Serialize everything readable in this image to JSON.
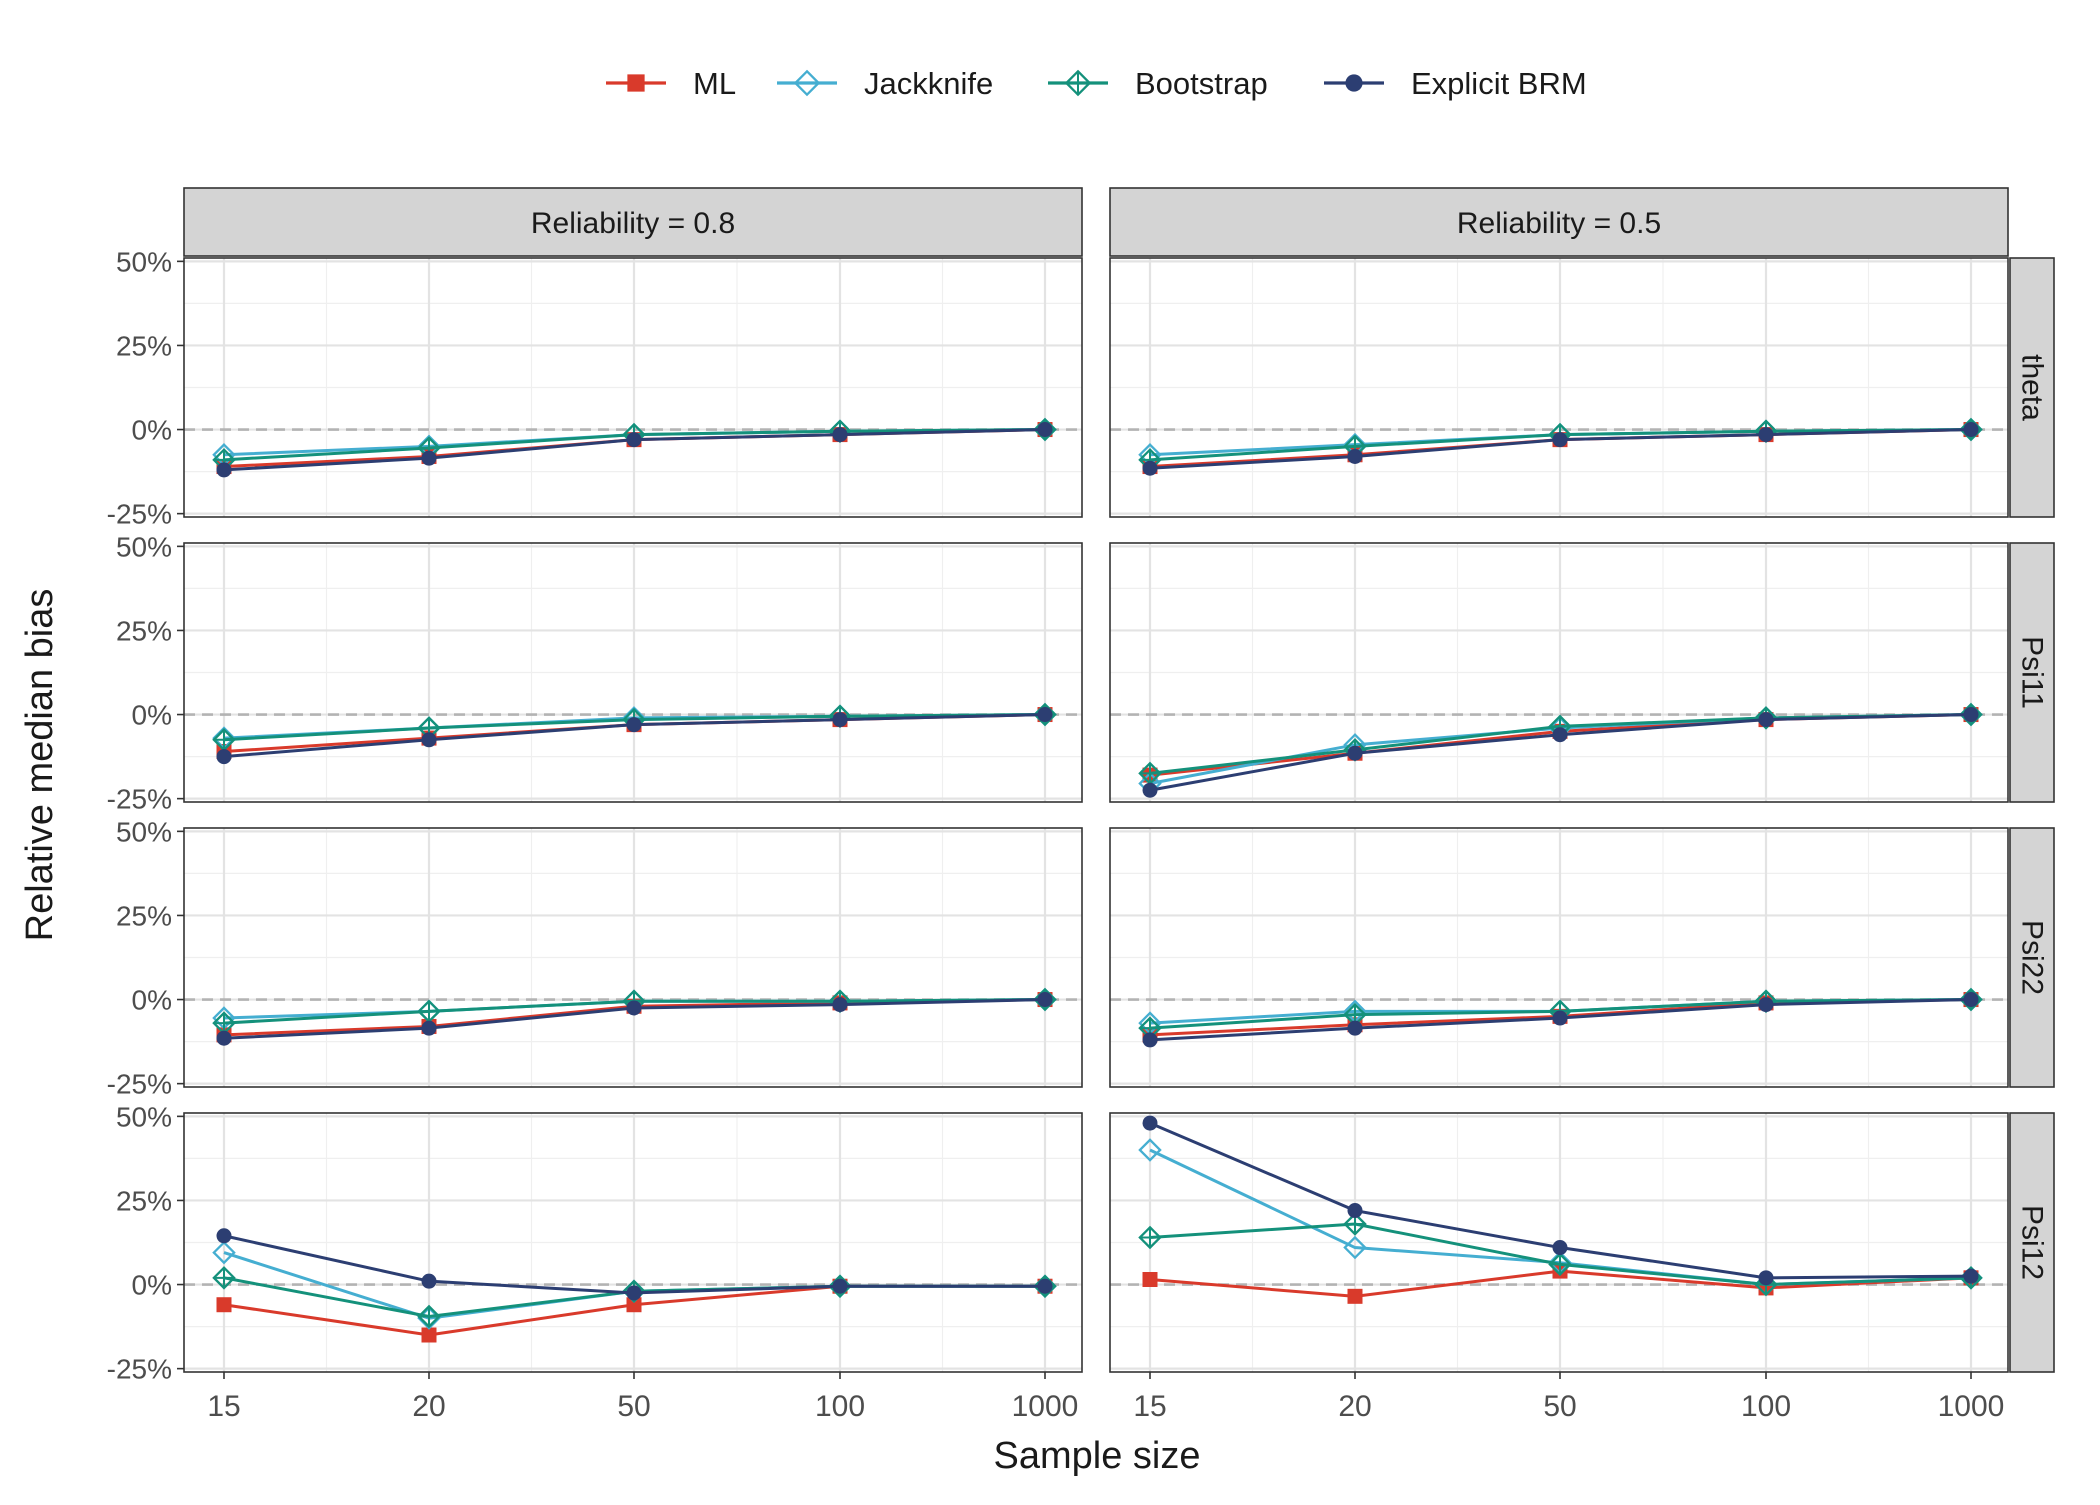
{
  "chart_data": {
    "type": "line",
    "xlabel": "Sample size",
    "ylabel": "Relative median bias",
    "x_categories": [
      "15",
      "20",
      "50",
      "100",
      "1000"
    ],
    "y_ticks": [
      -25,
      0,
      25,
      50
    ],
    "y_tick_labels": [
      "-25%",
      "0%",
      "25%",
      "50%"
    ],
    "ylim": [
      -26,
      51
    ],
    "grid": true,
    "reference_line": 0,
    "legend_position": "top",
    "columns": [
      "Reliability = 0.8",
      "Reliability = 0.5"
    ],
    "rows": [
      "theta",
      "Psi11",
      "Psi22",
      "Psi12"
    ],
    "series_styles": [
      {
        "name": "ML",
        "color": "#d93a2b",
        "marker": "square"
      },
      {
        "name": "Jackknife",
        "color": "#45aed1",
        "marker": "diamond-open"
      },
      {
        "name": "Bootstrap",
        "color": "#14917b",
        "marker": "diamond-cross"
      },
      {
        "name": "Explicit BRM",
        "color": "#2c3e72",
        "marker": "circle"
      }
    ],
    "panels": [
      {
        "row": "theta",
        "column": "Reliability = 0.8",
        "series": [
          {
            "name": "ML",
            "values": [
              -11,
              -8,
              -3,
              -1.5,
              0
            ]
          },
          {
            "name": "Jackknife",
            "values": [
              -7.5,
              -5,
              -1.5,
              -0.5,
              0
            ]
          },
          {
            "name": "Bootstrap",
            "values": [
              -9,
              -5.5,
              -1.5,
              -0.5,
              0
            ]
          },
          {
            "name": "Explicit BRM",
            "values": [
              -12,
              -8.5,
              -3,
              -1.5,
              0
            ]
          }
        ]
      },
      {
        "row": "theta",
        "column": "Reliability = 0.5",
        "series": [
          {
            "name": "ML",
            "values": [
              -11,
              -7.5,
              -3,
              -1.5,
              0
            ]
          },
          {
            "name": "Jackknife",
            "values": [
              -7.5,
              -4.5,
              -1.5,
              -0.5,
              0
            ]
          },
          {
            "name": "Bootstrap",
            "values": [
              -9,
              -5,
              -1.5,
              -0.5,
              0
            ]
          },
          {
            "name": "Explicit BRM",
            "values": [
              -11.5,
              -8,
              -3,
              -1.5,
              0
            ]
          }
        ]
      },
      {
        "row": "Psi11",
        "column": "Reliability = 0.8",
        "series": [
          {
            "name": "ML",
            "values": [
              -11,
              -7,
              -3,
              -1.5,
              0
            ]
          },
          {
            "name": "Jackknife",
            "values": [
              -7,
              -4,
              -1,
              -0.5,
              0
            ]
          },
          {
            "name": "Bootstrap",
            "values": [
              -7.5,
              -4,
              -1.5,
              -0.5,
              0
            ]
          },
          {
            "name": "Explicit BRM",
            "values": [
              -12.5,
              -7.5,
              -3,
              -1.5,
              0
            ]
          }
        ]
      },
      {
        "row": "Psi11",
        "column": "Reliability = 0.5",
        "series": [
          {
            "name": "ML",
            "values": [
              -18,
              -11.5,
              -5,
              -1.5,
              0
            ]
          },
          {
            "name": "Jackknife",
            "values": [
              -20.5,
              -9,
              -4,
              -1,
              0
            ]
          },
          {
            "name": "Bootstrap",
            "values": [
              -17.5,
              -10.5,
              -3.5,
              -1,
              0
            ]
          },
          {
            "name": "Explicit BRM",
            "values": [
              -22.5,
              -11.5,
              -6,
              -1.5,
              0
            ]
          }
        ]
      },
      {
        "row": "Psi22",
        "column": "Reliability = 0.8",
        "series": [
          {
            "name": "ML",
            "values": [
              -10.5,
              -8,
              -2,
              -1,
              0
            ]
          },
          {
            "name": "Jackknife",
            "values": [
              -5.5,
              -3.5,
              -0.5,
              -0.5,
              0
            ]
          },
          {
            "name": "Bootstrap",
            "values": [
              -7,
              -3.5,
              -0.5,
              -0.5,
              0
            ]
          },
          {
            "name": "Explicit BRM",
            "values": [
              -11.5,
              -8.5,
              -2.5,
              -1.5,
              0
            ]
          }
        ]
      },
      {
        "row": "Psi22",
        "column": "Reliability = 0.5",
        "series": [
          {
            "name": "ML",
            "values": [
              -10.5,
              -7.5,
              -5,
              -1,
              0
            ]
          },
          {
            "name": "Jackknife",
            "values": [
              -7,
              -3.5,
              -3.5,
              -0.5,
              0
            ]
          },
          {
            "name": "Bootstrap",
            "values": [
              -8.5,
              -4.5,
              -3.5,
              -0.5,
              0
            ]
          },
          {
            "name": "Explicit BRM",
            "values": [
              -12,
              -8.5,
              -5.5,
              -1.5,
              0
            ]
          }
        ]
      },
      {
        "row": "Psi12",
        "column": "Reliability = 0.8",
        "series": [
          {
            "name": "ML",
            "values": [
              -6,
              -15,
              -6,
              -0.5,
              -0.5
            ]
          },
          {
            "name": "Jackknife",
            "values": [
              9.5,
              -10,
              -2,
              -0.5,
              -0.5
            ]
          },
          {
            "name": "Bootstrap",
            "values": [
              2,
              -9.5,
              -2,
              -0.5,
              -0.5
            ]
          },
          {
            "name": "Explicit BRM",
            "values": [
              14.5,
              1,
              -2.5,
              -0.5,
              -0.5
            ]
          }
        ]
      },
      {
        "row": "Psi12",
        "column": "Reliability = 0.5",
        "series": [
          {
            "name": "ML",
            "values": [
              1.5,
              -3.5,
              4,
              -1,
              2
            ]
          },
          {
            "name": "Jackknife",
            "values": [
              40,
              11,
              6.5,
              0,
              2
            ]
          },
          {
            "name": "Bootstrap",
            "values": [
              14,
              18,
              6,
              0,
              2
            ]
          },
          {
            "name": "Explicit BRM",
            "values": [
              48,
              22,
              11,
              2,
              2.5
            ]
          }
        ]
      }
    ]
  }
}
